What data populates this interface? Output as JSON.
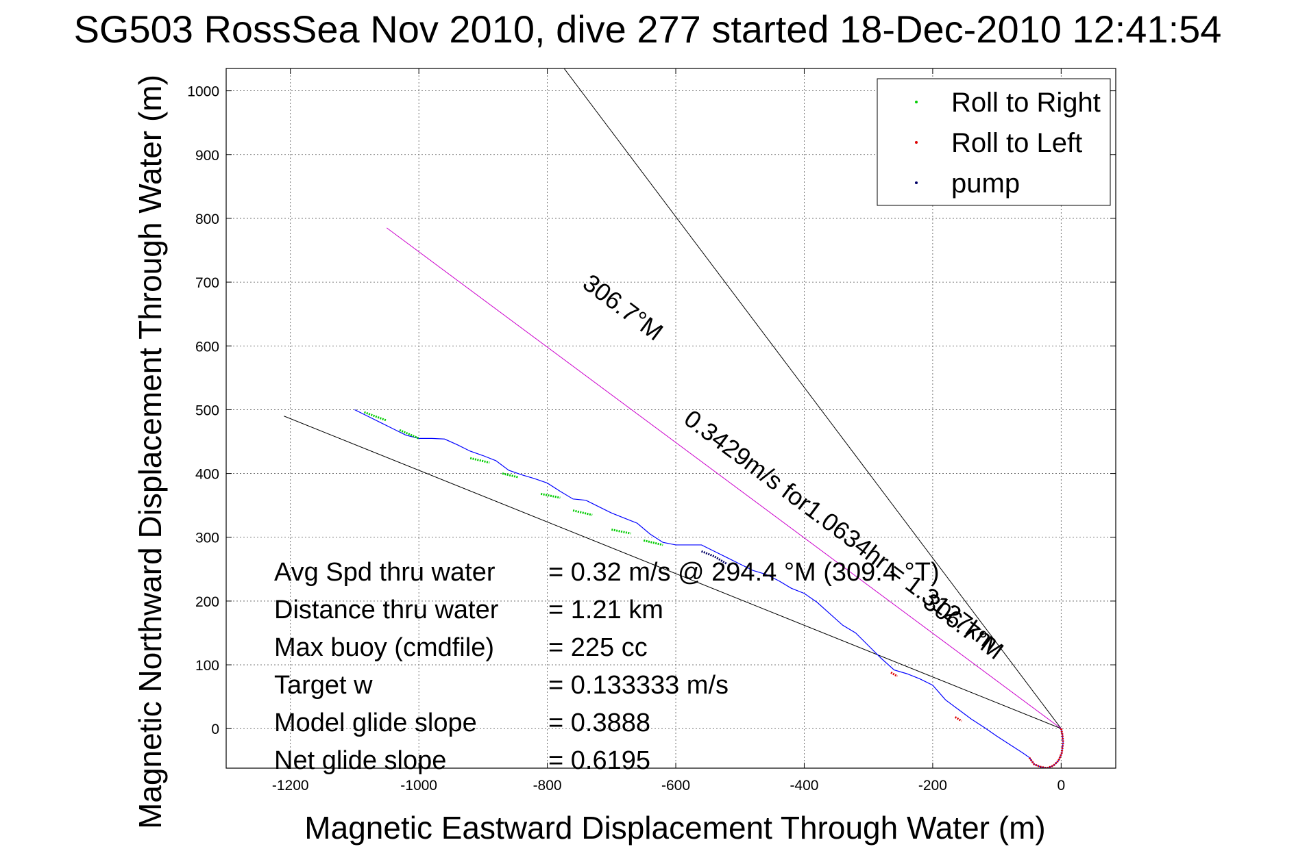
{
  "chart_data": {
    "type": "line",
    "title": "SG503 RossSea Nov 2010, dive 277 started 18-Dec-2010 12:41:54",
    "xlabel": "Magnetic Eastward Displacement Through Water (m)",
    "ylabel": "Magnetic Northward Displacement Through Water (m)",
    "xlim": [
      -1300,
      85
    ],
    "ylim": [
      -62,
      1035
    ],
    "grid": true,
    "x_ticks": [
      -1200,
      -1000,
      -800,
      -600,
      -400,
      -200,
      0
    ],
    "y_ticks": [
      0,
      100,
      200,
      300,
      400,
      500,
      600,
      700,
      800,
      900,
      1000
    ],
    "legend": {
      "placement": "top-right",
      "entries": [
        {
          "label": "Roll to Right",
          "color": "#00cc00"
        },
        {
          "label": "Roll to Left",
          "color": "#dd0000"
        },
        {
          "label": "pump",
          "color": "#000066"
        }
      ]
    },
    "series": [
      {
        "name": "track",
        "color": "#0000ff",
        "x": [
          0,
          2,
          3,
          1,
          -4,
          -12,
          -22,
          -32,
          -42,
          -50,
          -60,
          -80,
          -100,
          -120,
          -140,
          -160,
          -180,
          -200,
          -220,
          -240,
          -260,
          -280,
          -300,
          -320,
          -340,
          -360,
          -380,
          -400,
          -420,
          -440,
          -460,
          -480,
          -500,
          -520,
          -540,
          -560,
          -580,
          -600,
          -620,
          -640,
          -660,
          -680,
          -700,
          -720,
          -740,
          -760,
          -780,
          -800,
          -820,
          -840,
          -860,
          -880,
          -900,
          -920,
          -940,
          -960,
          -980,
          -1000,
          -1020,
          -1040,
          -1060,
          -1080,
          -1100
        ],
        "y": [
          0,
          -10,
          -22,
          -38,
          -50,
          -58,
          -62,
          -60,
          -56,
          -45,
          -38,
          -25,
          -12,
          2,
          15,
          30,
          45,
          68,
          78,
          86,
          92,
          110,
          130,
          150,
          162,
          180,
          198,
          212,
          220,
          232,
          242,
          248,
          258,
          268,
          278,
          288,
          288,
          288,
          292,
          305,
          322,
          330,
          338,
          348,
          358,
          360,
          372,
          385,
          392,
          398,
          405,
          420,
          428,
          435,
          445,
          454,
          455,
          455,
          460,
          470,
          480,
          490,
          500
        ]
      },
      {
        "name": "Roll to Right",
        "color": "#00cc00",
        "segments": [
          {
            "x": [
              -1085,
              -1050
            ],
            "y": [
              496,
              483
            ]
          },
          {
            "x": [
              -1030,
              -1000
            ],
            "y": [
              468,
              455
            ]
          },
          {
            "x": [
              -920,
              -890
            ],
            "y": [
              424,
              417
            ]
          },
          {
            "x": [
              -870,
              -845
            ],
            "y": [
              400,
              394
            ]
          },
          {
            "x": [
              -810,
              -780
            ],
            "y": [
              368,
              362
            ]
          },
          {
            "x": [
              -760,
              -730
            ],
            "y": [
              342,
              335
            ]
          },
          {
            "x": [
              -700,
              -670
            ],
            "y": [
              312,
              306
            ]
          },
          {
            "x": [
              -650,
              -620
            ],
            "y": [
              295,
              288
            ]
          }
        ]
      },
      {
        "name": "Roll to Left",
        "color": "#dd0000",
        "segments": [
          {
            "x": [
              0,
              2,
              3,
              1,
              -4,
              -12,
              -22,
              -32,
              -42,
              -50
            ],
            "y": [
              0,
              -10,
              -22,
              -38,
              -50,
              -58,
              -62,
              -60,
              -56,
              -45
            ]
          },
          {
            "x": [
              -165,
              -155
            ],
            "y": [
              18,
              12
            ]
          },
          {
            "x": [
              -265,
              -255
            ],
            "y": [
              88,
              82
            ]
          }
        ]
      },
      {
        "name": "pump",
        "color": "#000066",
        "segments": [
          {
            "x": [
              -560,
              -540,
              -520
            ],
            "y": [
              278,
              270,
              258
            ]
          }
        ]
      }
    ],
    "reference_lines": [
      {
        "name": "heading-line-upper",
        "color": "#000000",
        "x": [
          0,
          -800
        ],
        "y": [
          0,
          1070
        ]
      },
      {
        "name": "heading-line-lower",
        "color": "#000000",
        "x": [
          0,
          -1210
        ],
        "y": [
          0,
          490
        ]
      },
      {
        "name": "heading-line-magenta",
        "color": "#cc00cc",
        "x": [
          0,
          -1050
        ],
        "y": [
          0,
          785
        ]
      }
    ],
    "rotated_labels": [
      {
        "text": "306.7°M",
        "x": -690,
        "y": 650,
        "angle": 36.8
      },
      {
        "text": "0.3429m/s for1.0634hr = 1.3127km",
        "x": -350,
        "y": 300,
        "angle": 36.8
      },
      {
        "text": "306.7°M",
        "x": -160,
        "y": 150,
        "angle": 36.8
      }
    ],
    "annotations": [
      {
        "label": "Avg Spd thru water",
        "value": "=  0.32 m/s @ 294.4  °M (309.4 °T)"
      },
      {
        "label": "Distance thru water",
        "value": "=  1.21 km"
      },
      {
        "label": "Max buoy (cmdfile)",
        "value": "= 225 cc"
      },
      {
        "label": "Target w",
        "value": "= 0.133333 m/s"
      },
      {
        "label": "Model glide slope",
        "value": "= 0.3888"
      },
      {
        "label": "Net glide slope",
        "value": "= 0.6195"
      }
    ]
  }
}
